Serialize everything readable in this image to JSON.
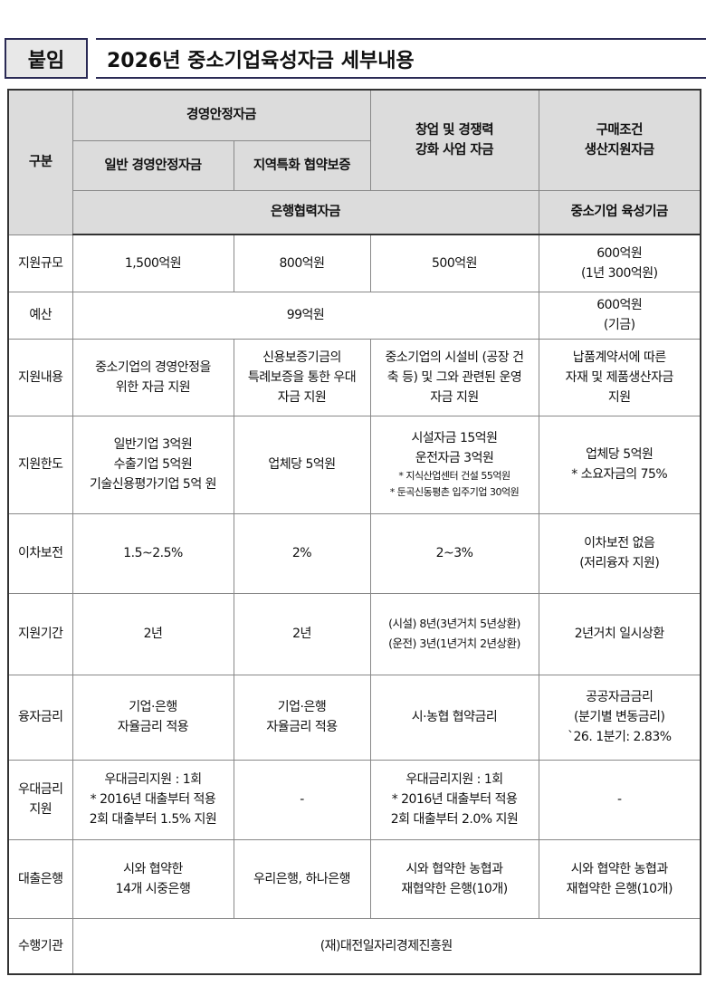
{
  "header": {
    "tag": "붙임",
    "title": "2026년 중소기업육성자금 세부내용"
  },
  "table": {
    "corner": "구분",
    "group1": "경영안정자금",
    "sub1": "일반 경영안정자금",
    "sub2": "지역특화 협약보증",
    "col3": "창업 및 경쟁력\n강화 사업 자금",
    "col4": "구매조건\n생산지원자금",
    "source1": "은행협력자금",
    "source2": "중소기업 육성기금",
    "rows": [
      {
        "label": "지원규모",
        "c1": "1,500억원",
        "c2": "800억원",
        "c3": "500억원",
        "c4": "600억원\n(1년 300억원)"
      },
      {
        "label": "예산",
        "c123": "99억원",
        "c4": "600억원\n(기금)"
      },
      {
        "label": "지원내용",
        "c1": "중소기업의 경영안정을\n위한 자금 지원",
        "c2": "신용보증기금의\n특례보증을 통한 우대\n자금 지원",
        "c3": "중소기업의 시설비 (공장 건\n축 등) 및 그와 관련된 운영\n자금 지원",
        "c4": "납품계약서에 따른\n자재 및 제품생산자금\n지원"
      },
      {
        "label": "지원한도",
        "c1": "일반기업 3억원\n수출기업 5억원\n기술신용평가기업 5억 원",
        "c2": "업체당 5억원",
        "c3": "시설자금 15억원\n운전자금   3억원",
        "c3_notes": [
          "* 지식산업센터 건설 55억원",
          "* 둔곡신동평촌 입주기업 30억원"
        ],
        "c4": "업체당 5억원\n* 소요자금의 75%"
      },
      {
        "label": "이차보전",
        "c1": "1.5~2.5%",
        "c2": "2%",
        "c3": "2~3%",
        "c4": "이차보전 없음\n(저리융자 지원)"
      },
      {
        "label": "지원기간",
        "c1": "2년",
        "c2": "2년",
        "c3": "(시설) 8년(3년거치 5년상환)\n(운전) 3년(1년거치 2년상환)",
        "c4": "2년거치 일시상환"
      },
      {
        "label": "융자금리",
        "c1": "기업·은행\n자율금리 적용",
        "c2": "기업·은행\n자율금리 적용",
        "c3": "시·농협 협약금리",
        "c4": "공공자금금리\n(분기별 변동금리)\n`26. 1분기: 2.83%"
      },
      {
        "label": "우대금리\n지원",
        "c1": "우대금리지원 : 1회\n* 2016년 대출부터 적용\n2회 대출부터 1.5% 지원",
        "c2": "-",
        "c3": "우대금리지원 : 1회\n* 2016년 대출부터 적용\n2회 대출부터 2.0% 지원",
        "c4": "-"
      },
      {
        "label": "대출은행",
        "c1": "시와 협약한\n14개 시중은행",
        "c2": "우리은행, 하나은행",
        "c3": "시와 협약한 농협과\n재협약한 은행(10개)",
        "c4": "시와 협약한 농협과\n재협약한 은행(10개)"
      },
      {
        "label": "수행기관",
        "c1234": "(재)대전일자리경제진흥원"
      }
    ]
  }
}
